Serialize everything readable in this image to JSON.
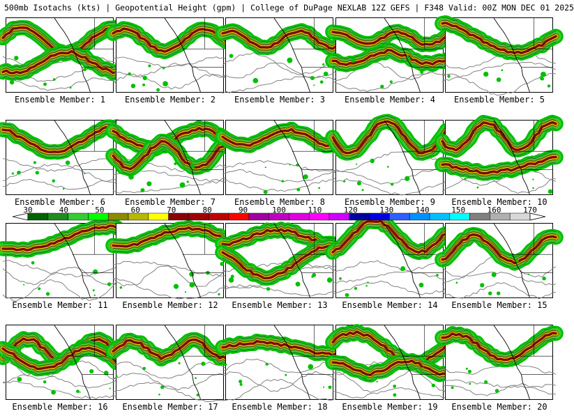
{
  "header": {
    "title": "500mb Isotachs (kts) | Geopotential Height (gpm) | College of DuPage NEXLAB   12Z GEFS | F348 Valid: 00Z MON DEC 01 2025"
  },
  "colors": {
    "background": "#ffffff",
    "border": "#000000",
    "height_contour": "#808080",
    "land_outline": "#000000"
  },
  "colorbar": {
    "labels": [
      "30",
      "40",
      "50",
      "60",
      "70",
      "80",
      "90",
      "100",
      "110",
      "120",
      "130",
      "140",
      "150",
      "160",
      "170"
    ],
    "colors": [
      "#006400",
      "#1e8c1e",
      "#32cd32",
      "#00ff00",
      "#8b8b00",
      "#b8b800",
      "#ffff00",
      "#8b0000",
      "#a00000",
      "#c00000",
      "#ff0000",
      "#a000a0",
      "#c000c0",
      "#e000e0",
      "#ff00ff",
      "#d000ff",
      "#0000a0",
      "#0000e0",
      "#3060ff",
      "#0090ff",
      "#00c0ff",
      "#00ffff",
      "#808080",
      "#b0b0b0",
      "#d8d8d8"
    ]
  },
  "members": [
    {
      "label": "Ensemble Member: 1"
    },
    {
      "label": "Ensemble Member: 2"
    },
    {
      "label": "Ensemble Member: 3"
    },
    {
      "label": "Ensemble Member: 4"
    },
    {
      "label": "Ensemble Member: 5"
    },
    {
      "label": "Ensemble Member: 6"
    },
    {
      "label": "Ensemble Member: 7"
    },
    {
      "label": "Ensemble Member: 8"
    },
    {
      "label": "Ensemble Member: 9"
    },
    {
      "label": "Ensemble Member: 10"
    },
    {
      "label": "Ensemble Member: 11"
    },
    {
      "label": "Ensemble Member: 12"
    },
    {
      "label": "Ensemble Member: 13"
    },
    {
      "label": "Ensemble Member: 14"
    },
    {
      "label": "Ensemble Member: 15"
    },
    {
      "label": "Ensemble Member: 16"
    },
    {
      "label": "Ensemble Member: 17"
    },
    {
      "label": "Ensemble Member: 18"
    },
    {
      "label": "Ensemble Member: 19"
    },
    {
      "label": "Ensemble Member: 20"
    }
  ]
}
